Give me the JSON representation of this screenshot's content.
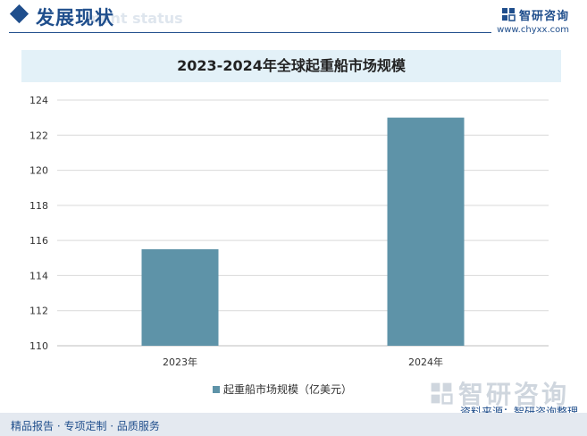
{
  "header": {
    "title": "发展现状",
    "title_en": "ment status",
    "brand_name": "智研咨询",
    "brand_url": "www.chyxx.com"
  },
  "chart_data": {
    "type": "bar",
    "title": "2023-2024年全球起重船市场规模",
    "categories": [
      "2023年",
      "2024年"
    ],
    "series": [
      {
        "name": "起重船市场规模（亿美元）",
        "values": [
          115.5,
          123.0
        ]
      }
    ],
    "ylim": [
      110,
      124
    ],
    "yticks": [
      110,
      112,
      114,
      116,
      118,
      120,
      122,
      124
    ],
    "grid": true,
    "legend": "bottom",
    "bar_color": "#5e93a8"
  },
  "watermark": {
    "text": "智研咨询"
  },
  "source": "资料来源：智研咨询整理",
  "footer": "精品报告 · 专项定制 · 品质服务"
}
